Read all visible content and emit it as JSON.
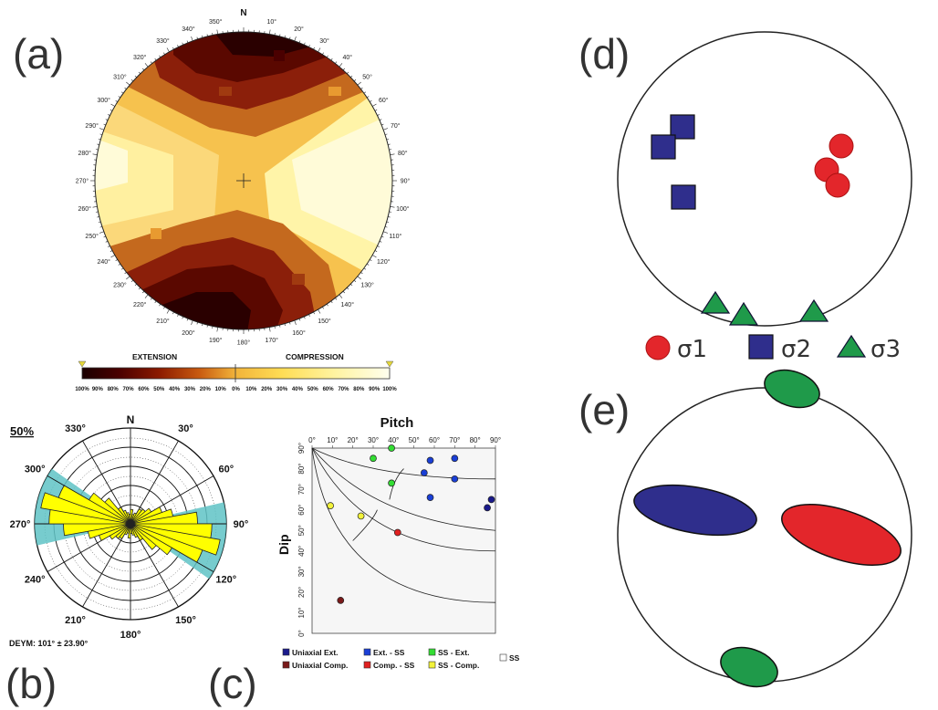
{
  "panels": {
    "a": "(a)",
    "b": "(b)",
    "c": "(c)",
    "d": "(d)",
    "e": "(e)"
  },
  "panel_a": {
    "north": "N",
    "azimuths": [
      "10°",
      "20°",
      "30°",
      "40°",
      "50°",
      "60°",
      "70°",
      "80°",
      "90°",
      "100°",
      "110°",
      "120°",
      "130°",
      "140°",
      "150°",
      "160°",
      "170°",
      "180°",
      "190°",
      "200°",
      "210°",
      "220°",
      "230°",
      "240°",
      "250°",
      "260°",
      "270°",
      "280°",
      "290°",
      "300°",
      "310°",
      "320°",
      "330°",
      "340°",
      "350°"
    ],
    "scale_left_label": "EXTENSION",
    "scale_right_label": "COMPRESSION",
    "scale_ticks": [
      "100%",
      "90%",
      "80%",
      "70%",
      "60%",
      "50%",
      "40%",
      "30%",
      "20%",
      "10%",
      "0%",
      "10%",
      "20%",
      "30%",
      "40%",
      "50%",
      "60%",
      "70%",
      "80%",
      "90%",
      "100%"
    ],
    "colors": {
      "extension": "#3a0000",
      "neutral": "#f2b43a",
      "compression": "#fffbd0"
    }
  },
  "panel_b": {
    "north": "N",
    "scale_label": "50%",
    "azimuth_labels": [
      "30°",
      "60°",
      "90°",
      "120°",
      "150°",
      "180°",
      "210°",
      "240°",
      "270°",
      "300°",
      "330°"
    ],
    "footer": "DEYM: 101° ± 23.90°",
    "rose_color": "#ffff00",
    "band_color": "#5fc3c6"
  },
  "panel_c": {
    "title": "Pitch",
    "ylabel": "Dip",
    "x_ticks": [
      "0°",
      "10°",
      "20°",
      "30°",
      "40°",
      "50°",
      "60°",
      "70°",
      "80°",
      "90°"
    ],
    "y_ticks": [
      "90°",
      "80°",
      "70°",
      "60°",
      "50°",
      "40°",
      "30°",
      "20°",
      "10°",
      "0°"
    ],
    "legend": [
      {
        "label": "Uniaxial Ext.",
        "color": "#1a1a8c"
      },
      {
        "label": "Ext. - SS",
        "color": "#1a3fd6"
      },
      {
        "label": "SS - Ext.",
        "color": "#33dd33"
      },
      {
        "label": "SS",
        "color": "#ffffff"
      },
      {
        "label": "Uniaxial Comp.",
        "color": "#7a1a1a"
      },
      {
        "label": "Comp. - SS",
        "color": "#e02020"
      },
      {
        "label": "SS - Comp.",
        "color": "#f2f23a"
      }
    ]
  },
  "panel_d": {
    "sigma_labels": [
      "σ1",
      "σ2",
      "σ3"
    ],
    "colors": {
      "sigma1": "#e3262b",
      "sigma2": "#2f2e8c",
      "sigma3": "#1f9a4a"
    }
  },
  "chart_data": [
    {
      "type": "scatter",
      "title": "Pitch",
      "xlabel": "Pitch",
      "ylabel": "Dip",
      "xlim": [
        0,
        90
      ],
      "ylim": [
        0,
        90
      ],
      "series": [
        {
          "name": "Uniaxial Ext.",
          "color": "#1a1a8c",
          "points": [
            [
              88,
              65
            ],
            [
              86,
              61
            ]
          ]
        },
        {
          "name": "Ext. - SS",
          "color": "#1a3fd6",
          "points": [
            [
              55,
              78
            ],
            [
              58,
              84
            ],
            [
              70,
              85
            ],
            [
              70,
              75
            ],
            [
              58,
              66
            ]
          ]
        },
        {
          "name": "SS - Ext.",
          "color": "#33dd33",
          "points": [
            [
              39,
              90
            ],
            [
              30,
              85
            ],
            [
              39,
              73
            ]
          ]
        },
        {
          "name": "SS - Comp.",
          "color": "#f2f23a",
          "points": [
            [
              9,
              62
            ],
            [
              24,
              57
            ]
          ]
        },
        {
          "name": "Comp. - SS",
          "color": "#e02020",
          "points": [
            [
              42,
              49
            ]
          ]
        },
        {
          "name": "Uniaxial Comp.",
          "color": "#7a1a1a",
          "points": [
            [
              14,
              16
            ]
          ]
        }
      ]
    }
  ]
}
